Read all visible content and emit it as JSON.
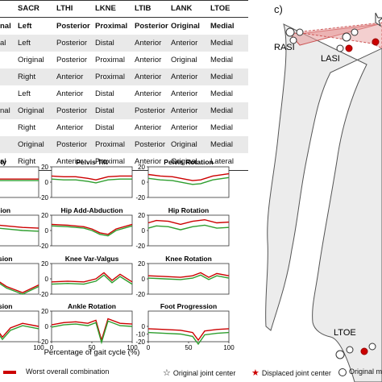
{
  "table": {
    "headers": [
      "SACR",
      "LTHI",
      "LKNE",
      "LTIB",
      "LANK",
      "LTOE"
    ],
    "rows": [
      {
        "first": "nal",
        "cells": [
          "Left",
          "Posterior",
          "Proximal",
          "Posterior",
          "Original",
          "Medial"
        ],
        "bold": true
      },
      {
        "first": "al",
        "cells": [
          "Left",
          "Posterior",
          "Distal",
          "Anterior",
          "Anterior",
          "Medial"
        ]
      },
      {
        "first": "",
        "cells": [
          "Original",
          "Posterior",
          "Proximal",
          "Anterior",
          "Original",
          "Medial"
        ]
      },
      {
        "first": "",
        "cells": [
          "Right",
          "Anterior",
          "Proximal",
          "Anterior",
          "Anterior",
          "Medial"
        ]
      },
      {
        "first": "",
        "cells": [
          "Left",
          "Anterior",
          "Distal",
          "Anterior",
          "Anterior",
          "Medial"
        ]
      },
      {
        "first": "nal",
        "cells": [
          "Original",
          "Posterior",
          "Distal",
          "Posterior",
          "Anterior",
          "Medial"
        ]
      },
      {
        "first": "",
        "cells": [
          "Right",
          "Anterior",
          "Distal",
          "Anterior",
          "Anterior",
          "Medial"
        ]
      },
      {
        "first": "",
        "cells": [
          "Original",
          "Posterior",
          "Proximal",
          "Posterior",
          "Original",
          "Medial"
        ]
      },
      {
        "first": "al",
        "cells": [
          "Right",
          "Anterior",
          "Proximal",
          "Anterior",
          "Original",
          "Lateral"
        ]
      }
    ]
  },
  "chart_data": [
    {
      "type": "line",
      "title": "quity",
      "ylim": [
        -20,
        20
      ],
      "yticks": [],
      "xlim": [
        0,
        100
      ],
      "xticks": [],
      "series": [
        {
          "color": "#cc0000",
          "x": [
            0,
            20,
            40,
            60,
            80,
            100
          ],
          "y": [
            4,
            4,
            4,
            4,
            4,
            4
          ]
        },
        {
          "color": "#2e9e2e",
          "x": [
            0,
            20,
            40,
            60,
            80,
            100
          ],
          "y": [
            2,
            2,
            2,
            2,
            2,
            2
          ]
        }
      ]
    },
    {
      "type": "line",
      "title": "Pelvis Tilt",
      "ylim": [
        -20,
        20
      ],
      "yticks": [
        20,
        0,
        -20
      ],
      "xlim": [
        0,
        100
      ],
      "xticks": [],
      "series": [
        {
          "color": "#cc0000",
          "x": [
            0,
            15,
            30,
            45,
            55,
            70,
            85,
            100
          ],
          "y": [
            8,
            7,
            7,
            5,
            3,
            7,
            8,
            8
          ]
        },
        {
          "color": "#2e9e2e",
          "x": [
            0,
            15,
            30,
            45,
            55,
            70,
            85,
            100
          ],
          "y": [
            4,
            3,
            3,
            1,
            -1,
            3,
            4,
            4
          ]
        }
      ]
    },
    {
      "type": "line",
      "title": "Pelvis Rotation",
      "ylim": [
        -20,
        20
      ],
      "yticks": [
        20,
        0,
        -20
      ],
      "xlim": [
        0,
        100
      ],
      "xticks": [],
      "series": [
        {
          "color": "#cc0000",
          "x": [
            0,
            15,
            30,
            45,
            55,
            65,
            80,
            100
          ],
          "y": [
            10,
            8,
            7,
            4,
            2,
            3,
            8,
            11
          ]
        },
        {
          "color": "#2e9e2e",
          "x": [
            0,
            15,
            30,
            45,
            55,
            65,
            80,
            100
          ],
          "y": [
            5,
            3,
            2,
            -1,
            -3,
            -2,
            3,
            6
          ]
        }
      ]
    },
    {
      "type": "line",
      "title": "tension",
      "ylim": [
        -20,
        20
      ],
      "yticks": [],
      "xlim": [
        0,
        100
      ],
      "xticks": [],
      "series": [
        {
          "color": "#cc0000",
          "x": [
            0,
            20,
            40,
            60,
            80,
            100
          ],
          "y": [
            3,
            6,
            8,
            6,
            4,
            3
          ]
        },
        {
          "color": "#2e9e2e",
          "x": [
            0,
            20,
            40,
            60,
            80,
            100
          ],
          "y": [
            -1,
            2,
            4,
            2,
            0,
            -1
          ]
        }
      ]
    },
    {
      "type": "line",
      "title": "Hip Add-Abduction",
      "ylim": [
        -20,
        20
      ],
      "yticks": [
        20,
        0,
        -20
      ],
      "xlim": [
        0,
        100
      ],
      "xticks": [],
      "series": [
        {
          "color": "#cc0000",
          "x": [
            0,
            20,
            40,
            50,
            60,
            70,
            80,
            100
          ],
          "y": [
            8,
            7,
            5,
            2,
            -3,
            -5,
            2,
            8
          ]
        },
        {
          "color": "#2e9e2e",
          "x": [
            0,
            20,
            40,
            50,
            60,
            70,
            80,
            100
          ],
          "y": [
            6,
            5,
            3,
            0,
            -5,
            -7,
            0,
            6
          ]
        }
      ]
    },
    {
      "type": "line",
      "title": "Hip Rotation",
      "ylim": [
        -20,
        20
      ],
      "yticks": [
        20,
        0,
        -20
      ],
      "xlim": [
        0,
        100
      ],
      "xticks": [],
      "series": [
        {
          "color": "#cc0000",
          "x": [
            0,
            10,
            25,
            40,
            55,
            70,
            85,
            100
          ],
          "y": [
            10,
            13,
            12,
            8,
            12,
            14,
            10,
            11
          ]
        },
        {
          "color": "#2e9e2e",
          "x": [
            0,
            10,
            25,
            40,
            55,
            70,
            85,
            100
          ],
          "y": [
            3,
            6,
            5,
            1,
            5,
            7,
            3,
            4
          ]
        }
      ]
    },
    {
      "type": "line",
      "title": "xtension",
      "ylim": [
        -20,
        20
      ],
      "yticks": [],
      "xlim": [
        0,
        100
      ],
      "xticks": [],
      "series": [
        {
          "color": "#cc0000",
          "x": [
            0,
            20,
            40,
            60,
            80,
            100
          ],
          "y": [
            10,
            14,
            4,
            -10,
            -18,
            -8
          ]
        },
        {
          "color": "#2e9e2e",
          "x": [
            0,
            20,
            40,
            60,
            80,
            100
          ],
          "y": [
            8,
            12,
            2,
            -12,
            -20,
            -10
          ]
        }
      ]
    },
    {
      "type": "line",
      "title": "Knee Var-Valgus",
      "ylim": [
        -20,
        20
      ],
      "yticks": [
        20,
        0,
        -20
      ],
      "xlim": [
        0,
        100
      ],
      "xticks": [],
      "series": [
        {
          "color": "#cc0000",
          "x": [
            0,
            20,
            40,
            55,
            65,
            75,
            85,
            100
          ],
          "y": [
            -4,
            -3,
            -4,
            0,
            8,
            -2,
            6,
            -4
          ]
        },
        {
          "color": "#2e9e2e",
          "x": [
            0,
            20,
            40,
            55,
            65,
            75,
            85,
            100
          ],
          "y": [
            -7,
            -6,
            -7,
            -3,
            5,
            -5,
            3,
            -7
          ]
        }
      ]
    },
    {
      "type": "line",
      "title": "Knee Rotation",
      "ylim": [
        -20,
        20
      ],
      "yticks": [
        20,
        0,
        -20
      ],
      "xlim": [
        0,
        100
      ],
      "xticks": [],
      "series": [
        {
          "color": "#cc0000",
          "x": [
            0,
            20,
            40,
            55,
            65,
            75,
            85,
            100
          ],
          "y": [
            4,
            3,
            2,
            4,
            8,
            2,
            7,
            4
          ]
        },
        {
          "color": "#2e9e2e",
          "x": [
            0,
            20,
            40,
            55,
            65,
            75,
            85,
            100
          ],
          "y": [
            1,
            0,
            -1,
            1,
            5,
            -1,
            4,
            1
          ]
        }
      ]
    },
    {
      "type": "line",
      "title": "xtension",
      "ylim": [
        -20,
        20
      ],
      "yticks": [],
      "xlim": [
        0,
        100
      ],
      "xticks": [
        0,
        100
      ],
      "series": [
        {
          "color": "#cc0000",
          "x": [
            0,
            20,
            40,
            55,
            65,
            80,
            100
          ],
          "y": [
            0,
            4,
            8,
            -14,
            -2,
            4,
            0
          ]
        },
        {
          "color": "#2e9e2e",
          "x": [
            0,
            20,
            40,
            55,
            65,
            80,
            100
          ],
          "y": [
            -3,
            1,
            5,
            -17,
            -5,
            1,
            -3
          ]
        }
      ]
    },
    {
      "type": "line",
      "title": "Ankle Rotation",
      "ylim": [
        -20,
        20
      ],
      "yticks": [
        20,
        0,
        -20
      ],
      "xlim": [
        0,
        100
      ],
      "xticks": [
        0,
        50,
        100
      ],
      "series": [
        {
          "color": "#cc0000",
          "x": [
            0,
            15,
            30,
            45,
            55,
            62,
            70,
            85,
            100
          ],
          "y": [
            2,
            5,
            6,
            4,
            8,
            -18,
            10,
            4,
            3
          ]
        },
        {
          "color": "#2e9e2e",
          "x": [
            0,
            15,
            30,
            45,
            55,
            62,
            70,
            85,
            100
          ],
          "y": [
            -1,
            2,
            3,
            1,
            5,
            -21,
            7,
            1,
            0
          ]
        }
      ]
    },
    {
      "type": "line",
      "title": "Foot Progression",
      "ylim": [
        -20,
        20
      ],
      "yticks": [
        0,
        -10,
        -20
      ],
      "xlim": [
        0,
        100
      ],
      "xticks": [
        0,
        50,
        100
      ],
      "series": [
        {
          "color": "#cc0000",
          "x": [
            0,
            20,
            40,
            55,
            62,
            70,
            85,
            100
          ],
          "y": [
            -3,
            -4,
            -5,
            -8,
            -18,
            -6,
            -4,
            -3
          ]
        },
        {
          "color": "#2e9e2e",
          "x": [
            0,
            20,
            40,
            55,
            62,
            70,
            85,
            100
          ],
          "y": [
            -8,
            -9,
            -10,
            -13,
            -23,
            -11,
            -9,
            -8
          ]
        }
      ]
    }
  ],
  "xaxis_label": "Percentage of gait cycle (%)",
  "legend": {
    "worst": "Worst overall combination",
    "original_joint": "Original joint center",
    "displaced_joint": "Displaced joint center",
    "original_marker": "Original m"
  },
  "panel_c": {
    "label": "c)",
    "markers": [
      "RASI",
      "LASI",
      "LTOE"
    ]
  },
  "colors": {
    "red": "#cc0000",
    "green": "#2e9e2e",
    "row_shade": "#e9e9e9",
    "leg_fill": "#ececec",
    "pelvis_fill": "#e8a0a0"
  }
}
